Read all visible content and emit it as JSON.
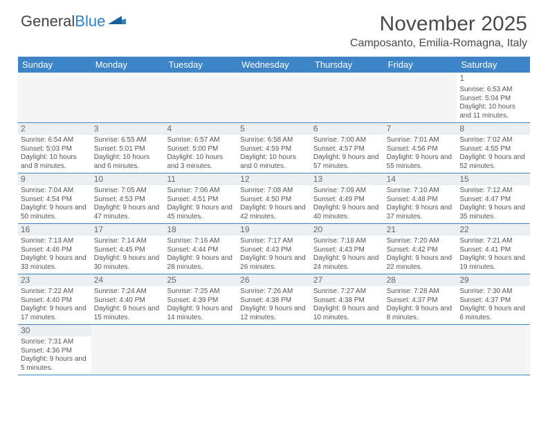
{
  "logo": {
    "word1": "General",
    "word2": "Blue"
  },
  "title": "November 2025",
  "location": "Camposanto, Emilia-Romagna, Italy",
  "colors": {
    "header_bg": "#3d85c6",
    "header_text": "#ffffff",
    "divider": "#3d85c6",
    "body_text": "#555555",
    "daynum_bg": "#eceff1",
    "empty_bg": "#f5f5f5",
    "page_bg": "#ffffff",
    "logo_gray": "#444444",
    "logo_blue": "#2f7fc1"
  },
  "day_names": [
    "Sunday",
    "Monday",
    "Tuesday",
    "Wednesday",
    "Thursday",
    "Friday",
    "Saturday"
  ],
  "first_weekday_index": 6,
  "days": [
    {
      "n": 1,
      "sunrise": "6:53 AM",
      "sunset": "5:04 PM",
      "daylight": "10 hours and 11 minutes."
    },
    {
      "n": 2,
      "sunrise": "6:54 AM",
      "sunset": "5:03 PM",
      "daylight": "10 hours and 8 minutes."
    },
    {
      "n": 3,
      "sunrise": "6:55 AM",
      "sunset": "5:01 PM",
      "daylight": "10 hours and 6 minutes."
    },
    {
      "n": 4,
      "sunrise": "6:57 AM",
      "sunset": "5:00 PM",
      "daylight": "10 hours and 3 minutes."
    },
    {
      "n": 5,
      "sunrise": "6:58 AM",
      "sunset": "4:59 PM",
      "daylight": "10 hours and 0 minutes."
    },
    {
      "n": 6,
      "sunrise": "7:00 AM",
      "sunset": "4:57 PM",
      "daylight": "9 hours and 57 minutes."
    },
    {
      "n": 7,
      "sunrise": "7:01 AM",
      "sunset": "4:56 PM",
      "daylight": "9 hours and 55 minutes."
    },
    {
      "n": 8,
      "sunrise": "7:02 AM",
      "sunset": "4:55 PM",
      "daylight": "9 hours and 52 minutes."
    },
    {
      "n": 9,
      "sunrise": "7:04 AM",
      "sunset": "4:54 PM",
      "daylight": "9 hours and 50 minutes."
    },
    {
      "n": 10,
      "sunrise": "7:05 AM",
      "sunset": "4:53 PM",
      "daylight": "9 hours and 47 minutes."
    },
    {
      "n": 11,
      "sunrise": "7:06 AM",
      "sunset": "4:51 PM",
      "daylight": "9 hours and 45 minutes."
    },
    {
      "n": 12,
      "sunrise": "7:08 AM",
      "sunset": "4:50 PM",
      "daylight": "9 hours and 42 minutes."
    },
    {
      "n": 13,
      "sunrise": "7:09 AM",
      "sunset": "4:49 PM",
      "daylight": "9 hours and 40 minutes."
    },
    {
      "n": 14,
      "sunrise": "7:10 AM",
      "sunset": "4:48 PM",
      "daylight": "9 hours and 37 minutes."
    },
    {
      "n": 15,
      "sunrise": "7:12 AM",
      "sunset": "4:47 PM",
      "daylight": "9 hours and 35 minutes."
    },
    {
      "n": 16,
      "sunrise": "7:13 AM",
      "sunset": "4:46 PM",
      "daylight": "9 hours and 33 minutes."
    },
    {
      "n": 17,
      "sunrise": "7:14 AM",
      "sunset": "4:45 PM",
      "daylight": "9 hours and 30 minutes."
    },
    {
      "n": 18,
      "sunrise": "7:16 AM",
      "sunset": "4:44 PM",
      "daylight": "9 hours and 28 minutes."
    },
    {
      "n": 19,
      "sunrise": "7:17 AM",
      "sunset": "4:43 PM",
      "daylight": "9 hours and 26 minutes."
    },
    {
      "n": 20,
      "sunrise": "7:18 AM",
      "sunset": "4:43 PM",
      "daylight": "9 hours and 24 minutes."
    },
    {
      "n": 21,
      "sunrise": "7:20 AM",
      "sunset": "4:42 PM",
      "daylight": "9 hours and 22 minutes."
    },
    {
      "n": 22,
      "sunrise": "7:21 AM",
      "sunset": "4:41 PM",
      "daylight": "9 hours and 19 minutes."
    },
    {
      "n": 23,
      "sunrise": "7:22 AM",
      "sunset": "4:40 PM",
      "daylight": "9 hours and 17 minutes."
    },
    {
      "n": 24,
      "sunrise": "7:24 AM",
      "sunset": "4:40 PM",
      "daylight": "9 hours and 15 minutes."
    },
    {
      "n": 25,
      "sunrise": "7:25 AM",
      "sunset": "4:39 PM",
      "daylight": "9 hours and 14 minutes."
    },
    {
      "n": 26,
      "sunrise": "7:26 AM",
      "sunset": "4:38 PM",
      "daylight": "9 hours and 12 minutes."
    },
    {
      "n": 27,
      "sunrise": "7:27 AM",
      "sunset": "4:38 PM",
      "daylight": "9 hours and 10 minutes."
    },
    {
      "n": 28,
      "sunrise": "7:28 AM",
      "sunset": "4:37 PM",
      "daylight": "9 hours and 8 minutes."
    },
    {
      "n": 29,
      "sunrise": "7:30 AM",
      "sunset": "4:37 PM",
      "daylight": "9 hours and 6 minutes."
    },
    {
      "n": 30,
      "sunrise": "7:31 AM",
      "sunset": "4:36 PM",
      "daylight": "9 hours and 5 minutes."
    }
  ],
  "labels": {
    "sunrise": "Sunrise:",
    "sunset": "Sunset:",
    "daylight": "Daylight:"
  }
}
